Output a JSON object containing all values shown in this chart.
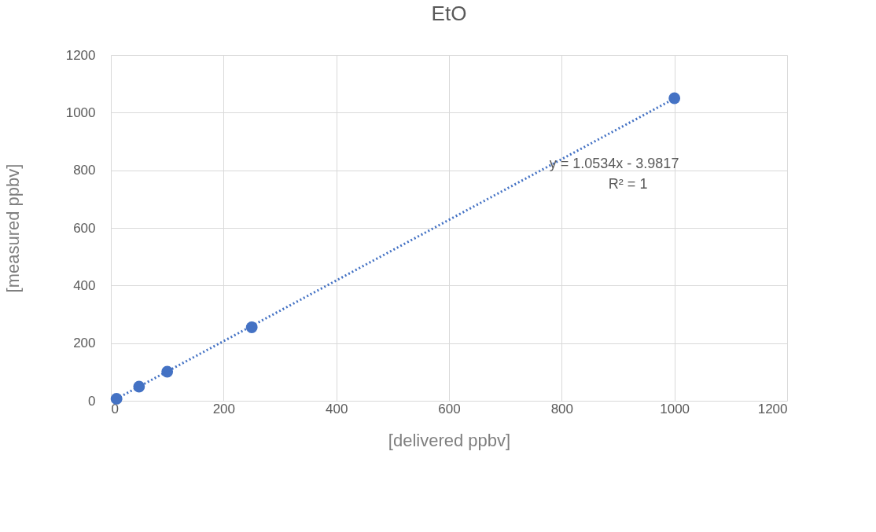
{
  "chart_data": {
    "type": "scatter",
    "title": "EtO",
    "xlabel": "[delivered ppbv]",
    "ylabel": "[measured ppbv]",
    "x": [
      10,
      50,
      100,
      250,
      1000
    ],
    "series": [
      {
        "color": "#4472c4",
        "values": [
          7,
          49,
          101,
          255,
          1050
        ],
        "marker": "circle"
      },
      {
        "type": "line",
        "color": "#4472c4",
        "x": [
          10,
          1000
        ],
        "values": [
          7,
          1049
        ],
        "line_style": "dotted"
      }
    ],
    "annotations": [
      "y = 1.0534x - 3.9817",
      "R² = 1"
    ],
    "xlim": [
      0,
      1200
    ],
    "xticks": [
      0,
      200,
      400,
      600,
      800,
      1000,
      1200
    ],
    "ylim": [
      0,
      1200
    ],
    "yticks": [
      0,
      200,
      400,
      600,
      800,
      1000,
      1200
    ],
    "grid": true
  }
}
